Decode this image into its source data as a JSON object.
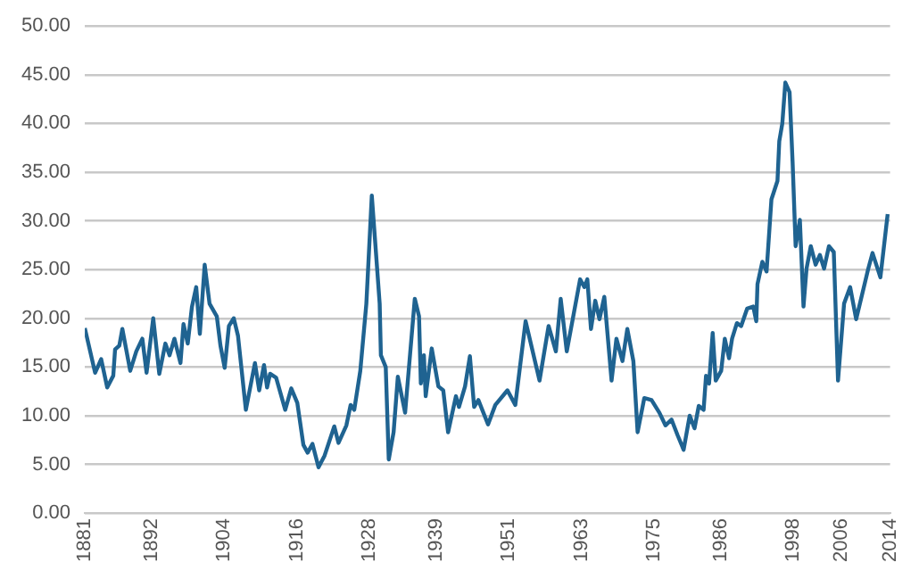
{
  "chart_data": {
    "type": "line",
    "color": "#1f6391",
    "grid": "y",
    "legend": false,
    "marker": "none",
    "line_style": "solid",
    "x": [
      1881,
      1882.7,
      1883.7,
      1884.7,
      1885.7,
      1886,
      1886.7,
      1887.2,
      1888.5,
      1889.5,
      1890.5,
      1891.2,
      1892.3,
      1893.3,
      1894.3,
      1895,
      1895.8,
      1896.8,
      1897.3,
      1898,
      1898.7,
      1899.4,
      1900,
      1900.8,
      1901.6,
      1902.8,
      1903.4,
      1904.1,
      1904.8,
      1905.6,
      1906.3,
      1907.6,
      1909.1,
      1909.8,
      1910.6,
      1911.1,
      1911.6,
      1912.6,
      1914.1,
      1915.1,
      1916.1,
      1917.1,
      1917.8,
      1918.6,
      1919.6,
      1920.6,
      1922.2,
      1922.9,
      1924.2,
      1924.9,
      1925.5,
      1926.5,
      1927.5,
      1928.4,
      1929.7,
      1929.9,
      1930.7,
      1931.2,
      1932,
      1932.7,
      1933.9,
      1935.5,
      1936.2,
      1936.5,
      1937,
      1937.3,
      1938.3,
      1939.4,
      1940.2,
      1941,
      1942.3,
      1942.8,
      1943.8,
      1944.6,
      1945.3,
      1946,
      1947.6,
      1948.8,
      1950.8,
      1952.1,
      1953.8,
      1956.1,
      1957.6,
      1958.8,
      1959.6,
      1960.6,
      1962.8,
      1963.5,
      1964,
      1964.6,
      1965.3,
      1966,
      1966.8,
      1968,
      1968.8,
      1969.8,
      1970.6,
      1971.6,
      1972.3,
      1973.4,
      1974.6,
      1975.9,
      1976.9,
      1977.9,
      1978.9,
      1979.9,
      1980.9,
      1981.7,
      1982.4,
      1983.2,
      1983.6,
      1984.1,
      1984.7,
      1985.2,
      1986.1,
      1986.7,
      1987.4,
      1987.9,
      1988.7,
      1989.4,
      1990.4,
      1991.4,
      1991.9,
      1992.1,
      1992.9,
      1993.6,
      1994.4,
      1995.4,
      1995.7,
      1996.2,
      1996.7,
      1997.4,
      1997.9,
      1998.4,
      1999.1,
      1999.7,
      2000.2,
      2000.9,
      2001.7,
      2002.4,
      2003.1,
      2003.9,
      2004.7,
      2005.4,
      2006.4,
      2007.4,
      2008.4,
      2009.9,
      2010.4,
      2011.1,
      2012.4,
      2013.6
    ],
    "values": [
      19.0,
      14.4,
      15.8,
      12.9,
      14.1,
      16.8,
      17.2,
      18.9,
      14.6,
      16.6,
      17.9,
      14.4,
      20.0,
      14.3,
      17.4,
      16.2,
      17.9,
      15.4,
      19.4,
      17.4,
      21.2,
      23.2,
      18.4,
      25.5,
      21.5,
      20.2,
      17.2,
      14.9,
      19.2,
      20.0,
      18.2,
      10.6,
      15.4,
      12.6,
      15.2,
      12.9,
      14.3,
      13.9,
      10.6,
      12.8,
      11.3,
      7.0,
      6.2,
      7.1,
      4.7,
      5.9,
      8.9,
      7.2,
      9.0,
      11.1,
      10.6,
      14.6,
      21.5,
      32.6,
      21.5,
      16.2,
      15.0,
      5.5,
      8.3,
      14.0,
      10.3,
      22.0,
      20.2,
      13.3,
      16.2,
      12.0,
      16.9,
      13.0,
      12.6,
      8.3,
      12.0,
      10.9,
      13.0,
      16.1,
      10.9,
      11.6,
      9.1,
      11.1,
      12.6,
      11.1,
      19.7,
      13.6,
      19.2,
      16.6,
      22.0,
      16.6,
      24.0,
      23.2,
      24.0,
      18.9,
      21.8,
      19.9,
      22.2,
      13.6,
      17.9,
      15.6,
      18.9,
      15.6,
      8.3,
      11.8,
      11.6,
      10.3,
      9.0,
      9.6,
      8.0,
      6.5,
      10.0,
      8.7,
      11.0,
      10.6,
      14.1,
      13.3,
      18.5,
      13.6,
      14.6,
      17.9,
      15.9,
      17.9,
      19.5,
      19.2,
      21.0,
      21.2,
      19.7,
      23.5,
      25.8,
      24.8,
      32.2,
      34.1,
      38.2,
      40.0,
      44.2,
      43.2,
      36.0,
      27.4,
      30.1,
      21.2,
      25.1,
      27.4,
      25.5,
      26.5,
      25.1,
      27.4,
      26.8,
      13.6,
      21.5,
      23.2,
      19.9,
      23.8,
      25.1,
      26.7,
      24.2,
      30.7
    ],
    "xlim": [
      1881,
      2014
    ],
    "xticks": [
      1881,
      1892,
      1904,
      1916,
      1928,
      1939,
      1951,
      1963,
      1975,
      1986,
      1998,
      2006,
      2014
    ],
    "ylim": [
      0,
      50
    ],
    "yticks": [
      {
        "value": 0,
        "label": "0.00"
      },
      {
        "value": 5,
        "label": "5.00"
      },
      {
        "value": 10,
        "label": "10.00"
      },
      {
        "value": 15,
        "label": "15.00"
      },
      {
        "value": 20,
        "label": "20.00"
      },
      {
        "value": 25,
        "label": "25.00"
      },
      {
        "value": 30,
        "label": "30.00"
      },
      {
        "value": 35,
        "label": "35.00"
      },
      {
        "value": 40,
        "label": "40.00"
      },
      {
        "value": 45,
        "label": "45.00"
      },
      {
        "value": 50,
        "label": "50.00"
      }
    ]
  }
}
